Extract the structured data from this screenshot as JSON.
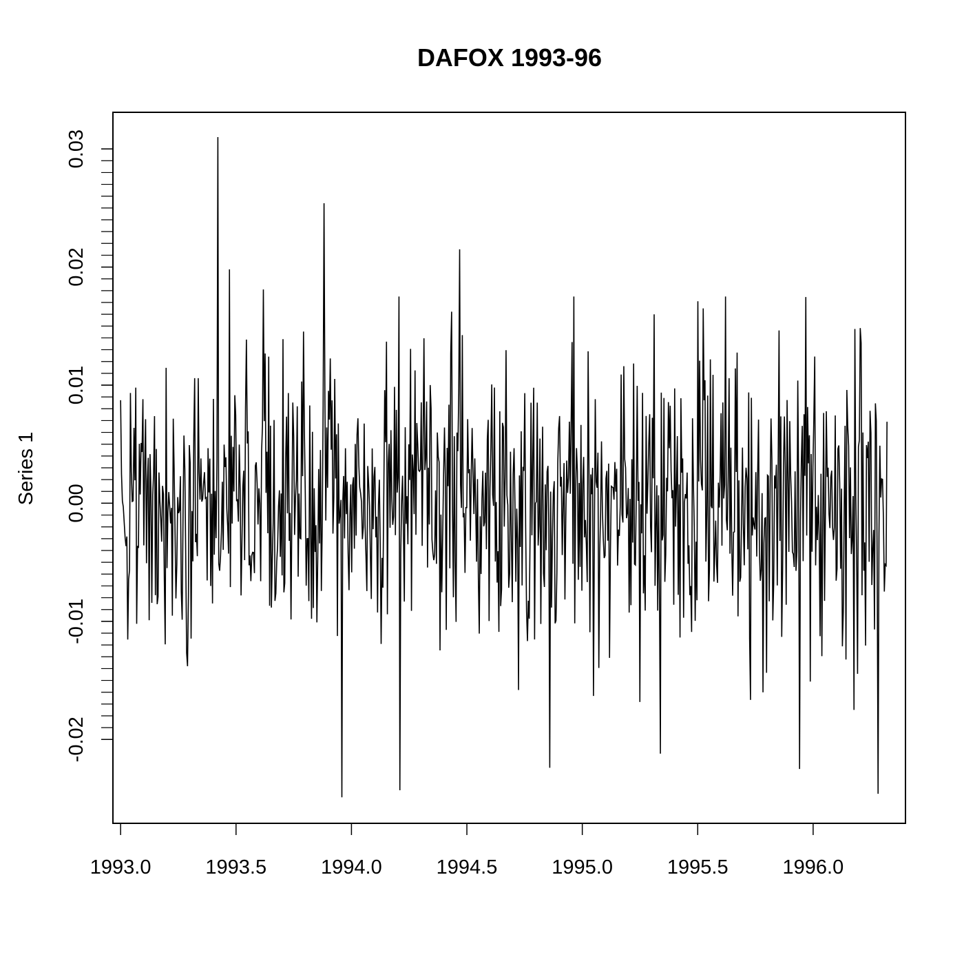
{
  "chart_data": {
    "type": "line",
    "title": "DAFOX 1993-96",
    "xlabel": "",
    "ylabel": "Series 1",
    "xlim": [
      1992.9667,
      1996.4
    ],
    "ylim": [
      -0.0271,
      0.0331
    ],
    "grid": false,
    "legend": "none",
    "line_color": "#000000",
    "x_start": 1993.0,
    "x_end": 1996.32,
    "n_points": 860,
    "x_ticks": [
      {
        "value": 1993.0,
        "label": "1993.0"
      },
      {
        "value": 1993.5,
        "label": "1993.5"
      },
      {
        "value": 1994.0,
        "label": "1994.0"
      },
      {
        "value": 1994.5,
        "label": "1994.5"
      },
      {
        "value": 1995.0,
        "label": "1995.0"
      },
      {
        "value": 1995.5,
        "label": "1995.5"
      },
      {
        "value": 1996.0,
        "label": "1996.0"
      }
    ],
    "y_ticks": [
      {
        "value": -0.02,
        "label": "-0.02"
      },
      {
        "value": -0.01,
        "label": "-0.01"
      },
      {
        "value": 0.0,
        "label": "0.00"
      },
      {
        "value": 0.01,
        "label": "0.01"
      },
      {
        "value": 0.02,
        "label": "0.02"
      },
      {
        "value": 0.03,
        "label": "0.03"
      }
    ],
    "y_minor_step": 0.001,
    "notable_points": [
      {
        "x": 1993.42,
        "y": 0.031
      },
      {
        "x": 1993.47,
        "y": 0.0198
      },
      {
        "x": 1993.62,
        "y": 0.0181
      },
      {
        "x": 1993.88,
        "y": 0.0254
      },
      {
        "x": 1993.96,
        "y": -0.0249
      },
      {
        "x": 1994.21,
        "y": -0.0243
      },
      {
        "x": 1994.47,
        "y": 0.0215
      },
      {
        "x": 1994.86,
        "y": -0.0224
      },
      {
        "x": 1995.34,
        "y": -0.0212
      },
      {
        "x": 1995.5,
        "y": 0.0171
      },
      {
        "x": 1995.94,
        "y": -0.0225
      },
      {
        "x": 1996.28,
        "y": -0.0246
      }
    ],
    "volatility": 0.0062,
    "seed": 19930196
  }
}
